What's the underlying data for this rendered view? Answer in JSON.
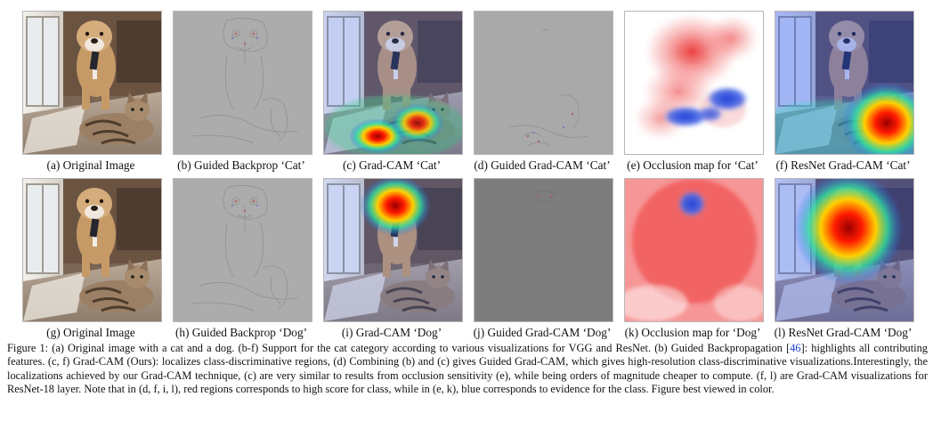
{
  "panels": [
    {
      "caption": "(a) Original Image",
      "kind": "photo-cat"
    },
    {
      "caption": "(b) Guided Backprop ‘Cat’",
      "kind": "grad-gray"
    },
    {
      "caption": "(c) Grad-CAM ‘Cat’",
      "kind": "photo-heat-cat"
    },
    {
      "caption": "(d) Guided Grad-CAM ‘Cat’",
      "kind": "grad-gray-sparse"
    },
    {
      "caption": "(e) Occlusion map for ‘Cat’",
      "kind": "occlusion-cat"
    },
    {
      "caption": "(f) ResNet Grad-CAM ‘Cat’",
      "kind": "resnet-cat"
    },
    {
      "caption": "(g) Original Image",
      "kind": "photo-dog"
    },
    {
      "caption": "(h) Guided Backprop ‘Dog’",
      "kind": "grad-gray"
    },
    {
      "caption": "(i) Grad-CAM ‘Dog’",
      "kind": "photo-heat-dog"
    },
    {
      "caption": "(j) Guided Grad-CAM ‘Dog’",
      "kind": "grad-dark"
    },
    {
      "caption": "(k) Occlusion map for ‘Dog’",
      "kind": "occlusion-dog"
    },
    {
      "caption": "(l) ResNet Grad-CAM ‘Dog’",
      "kind": "resnet-dog"
    }
  ],
  "figure_caption": {
    "part1": "Figure 1: (a) Original image with a cat and a dog. (b-f) Support for the cat category according to various visualizations for VGG and ResNet. (b) Guided Backpropagation [",
    "ref": "46",
    "part2": "]: highlights all contributing features. (c, f) Grad-CAM (Ours): localizes class-discriminative regions, (d) Combining (b) and (c) gives Guided Grad-CAM, which gives high-resolution class-discriminative visualizations.Interestingly, the localizations achieved by our Grad-CAM technique, (c) are very similar to results from occlusion sensitivity (e), while being orders of magnitude cheaper to compute. (f, l) are Grad-CAM visualizations for ResNet-18 layer. Note that in (d, f, i, l), red regions corresponds to high score for class, while in (e, k), blue corresponds to evidence for the class. Figure best viewed in color."
  },
  "colors": {
    "heat_red": "#d01010",
    "occlusion_red": "#f04848",
    "occlusion_blue": "#2e4ed8",
    "link_blue": "#1a3fd0"
  }
}
